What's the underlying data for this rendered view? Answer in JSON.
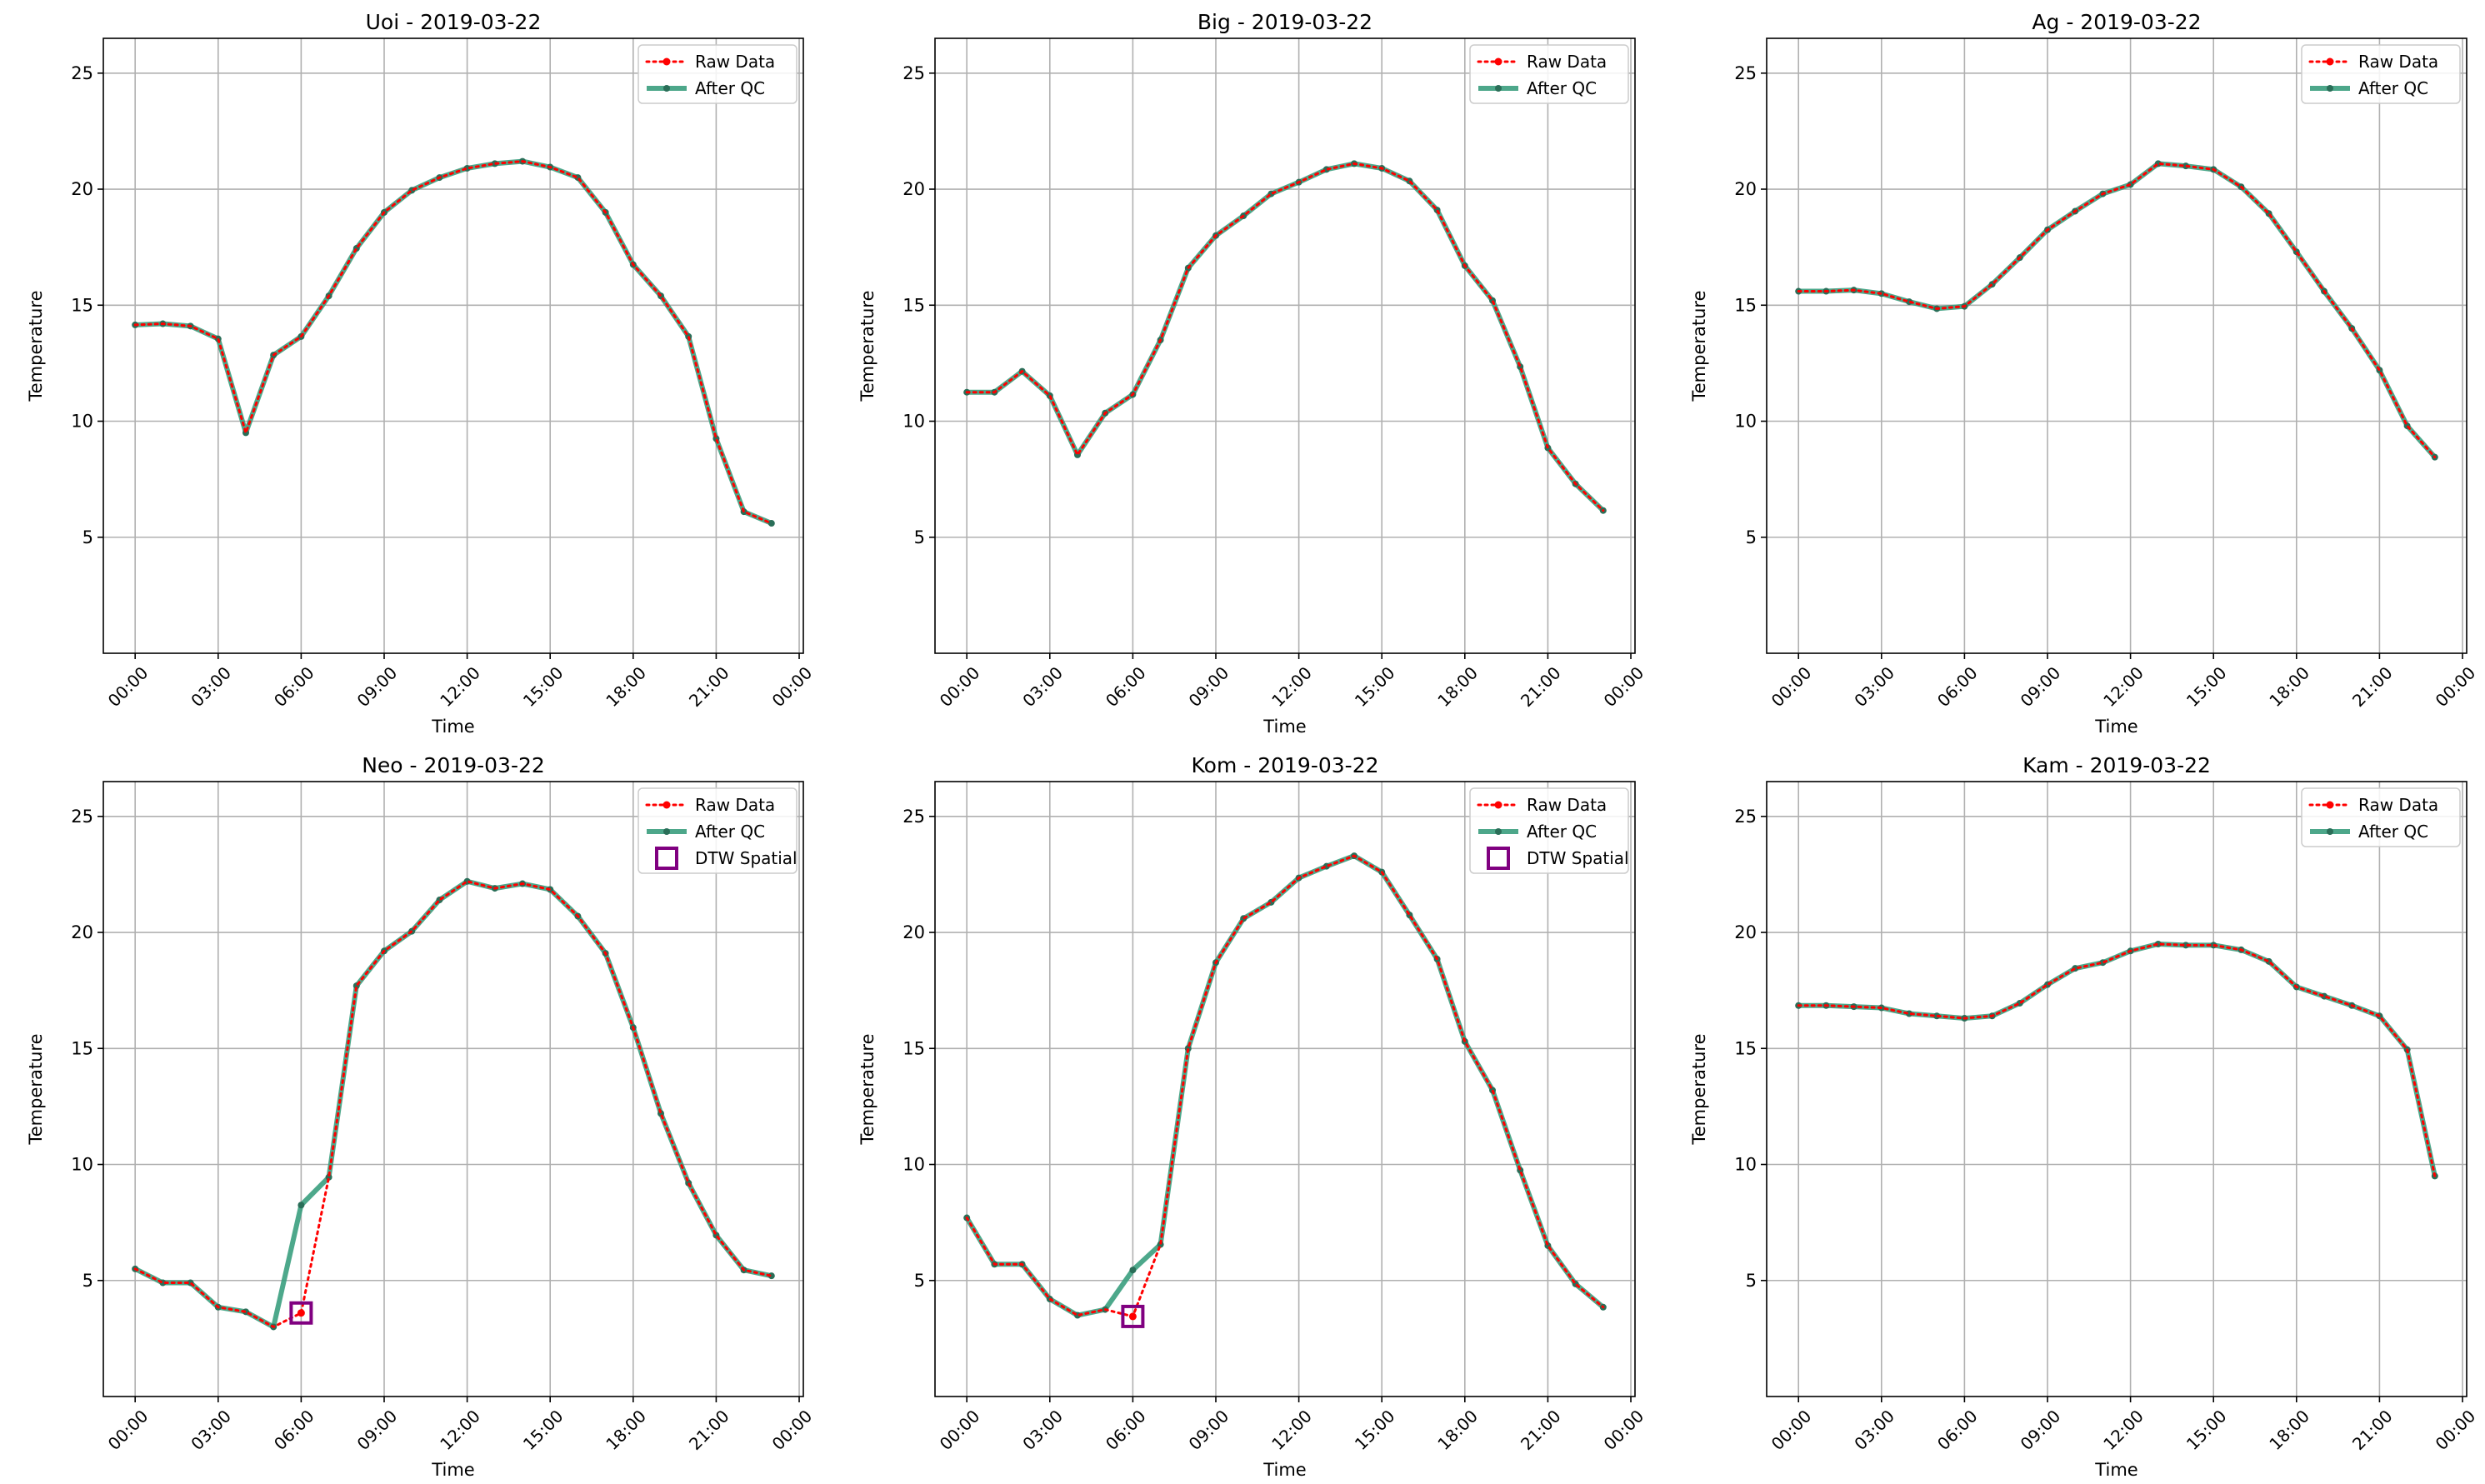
{
  "figure": {
    "panel_layout": {
      "rows": 2,
      "cols": 3
    }
  },
  "colors": {
    "raw": "#ff0000",
    "after_qc": "#3a9e7e",
    "after_qc_marker": "#2a6e58",
    "dtw": "#800080",
    "grid": "#b0b0b0",
    "axis": "#000000"
  },
  "chart_data": [
    {
      "type": "line",
      "title": "Uoi - 2019-03-22",
      "xlabel": "Time",
      "ylabel": "Temperature",
      "xlim": [
        -1.15,
        24.15
      ],
      "ylim": [
        0,
        26.5
      ],
      "x_ticks": [
        0,
        3,
        6,
        9,
        12,
        15,
        18,
        21,
        24
      ],
      "x_tick_labels": [
        "00:00",
        "03:00",
        "06:00",
        "09:00",
        "12:00",
        "15:00",
        "18:00",
        "21:00",
        "00:00"
      ],
      "y_ticks": [
        5,
        10,
        15,
        20,
        25
      ],
      "y_tick_labels": [
        "5",
        "10",
        "15",
        "20",
        "25"
      ],
      "grid": true,
      "legend_position": "top-right",
      "x": [
        0,
        1,
        2,
        3,
        4,
        5,
        6,
        7,
        8,
        9,
        10,
        11,
        12,
        13,
        14,
        15,
        16,
        17,
        18,
        19,
        20,
        21,
        22,
        23
      ],
      "series": [
        {
          "name": "Raw Data",
          "style": "dotted",
          "values": [
            14.15,
            14.2,
            14.1,
            13.55,
            9.5,
            12.85,
            13.65,
            15.4,
            17.45,
            19.0,
            19.95,
            20.5,
            20.9,
            21.1,
            21.2,
            20.95,
            20.5,
            19.0,
            16.75,
            15.4,
            13.65,
            9.25,
            6.1,
            5.6
          ]
        },
        {
          "name": "After QC",
          "style": "solid",
          "values": [
            14.15,
            14.2,
            14.1,
            13.55,
            9.5,
            12.85,
            13.65,
            15.4,
            17.45,
            19.0,
            19.95,
            20.5,
            20.9,
            21.1,
            21.2,
            20.95,
            20.5,
            19.0,
            16.75,
            15.4,
            13.65,
            9.25,
            6.1,
            5.6
          ]
        }
      ],
      "dtw_points": []
    },
    {
      "type": "line",
      "title": "Big - 2019-03-22",
      "xlabel": "Time",
      "ylabel": "Temperature",
      "xlim": [
        -1.15,
        24.15
      ],
      "ylim": [
        0,
        26.5
      ],
      "x_ticks": [
        0,
        3,
        6,
        9,
        12,
        15,
        18,
        21,
        24
      ],
      "x_tick_labels": [
        "00:00",
        "03:00",
        "06:00",
        "09:00",
        "12:00",
        "15:00",
        "18:00",
        "21:00",
        "00:00"
      ],
      "y_ticks": [
        5,
        10,
        15,
        20,
        25
      ],
      "y_tick_labels": [
        "5",
        "10",
        "15",
        "20",
        "25"
      ],
      "grid": true,
      "legend_position": "top-right",
      "x": [
        0,
        1,
        2,
        3,
        4,
        5,
        6,
        7,
        8,
        9,
        10,
        11,
        12,
        13,
        14,
        15,
        16,
        17,
        18,
        19,
        20,
        21,
        22,
        23
      ],
      "series": [
        {
          "name": "Raw Data",
          "style": "dotted",
          "values": [
            11.25,
            11.25,
            12.15,
            11.1,
            8.55,
            10.35,
            11.15,
            13.5,
            16.6,
            18.0,
            18.85,
            19.8,
            20.3,
            20.85,
            21.1,
            20.9,
            20.35,
            19.1,
            16.7,
            15.2,
            12.35,
            8.85,
            7.3,
            6.15
          ]
        },
        {
          "name": "After QC",
          "style": "solid",
          "values": [
            11.25,
            11.25,
            12.15,
            11.1,
            8.55,
            10.35,
            11.15,
            13.5,
            16.6,
            18.0,
            18.85,
            19.8,
            20.3,
            20.85,
            21.1,
            20.9,
            20.35,
            19.1,
            16.7,
            15.2,
            12.35,
            8.85,
            7.3,
            6.15
          ]
        }
      ],
      "dtw_points": []
    },
    {
      "type": "line",
      "title": "Ag - 2019-03-22",
      "xlabel": "Time",
      "ylabel": "Temperature",
      "xlim": [
        -1.15,
        24.15
      ],
      "ylim": [
        0,
        26.5
      ],
      "x_ticks": [
        0,
        3,
        6,
        9,
        12,
        15,
        18,
        21,
        24
      ],
      "x_tick_labels": [
        "00:00",
        "03:00",
        "06:00",
        "09:00",
        "12:00",
        "15:00",
        "18:00",
        "21:00",
        "00:00"
      ],
      "y_ticks": [
        5,
        10,
        15,
        20,
        25
      ],
      "y_tick_labels": [
        "5",
        "10",
        "15",
        "20",
        "25"
      ],
      "grid": true,
      "legend_position": "top-right",
      "x": [
        0,
        1,
        2,
        3,
        4,
        5,
        6,
        7,
        8,
        9,
        10,
        11,
        12,
        13,
        14,
        15,
        16,
        17,
        18,
        19,
        20,
        21,
        22,
        23
      ],
      "series": [
        {
          "name": "Raw Data",
          "style": "dotted",
          "values": [
            15.6,
            15.6,
            15.65,
            15.5,
            15.15,
            14.85,
            14.95,
            15.9,
            17.05,
            18.25,
            19.05,
            19.8,
            20.2,
            21.1,
            21.0,
            20.85,
            20.1,
            18.95,
            17.3,
            15.6,
            14.0,
            12.2,
            9.8,
            8.45
          ]
        },
        {
          "name": "After QC",
          "style": "solid",
          "values": [
            15.6,
            15.6,
            15.65,
            15.5,
            15.15,
            14.85,
            14.95,
            15.9,
            17.05,
            18.25,
            19.05,
            19.8,
            20.2,
            21.1,
            21.0,
            20.85,
            20.1,
            18.95,
            17.3,
            15.6,
            14.0,
            12.2,
            9.8,
            8.45
          ]
        }
      ],
      "dtw_points": []
    },
    {
      "type": "line",
      "title": "Neo - 2019-03-22",
      "xlabel": "Time",
      "ylabel": "Temperature",
      "xlim": [
        -1.15,
        24.15
      ],
      "ylim": [
        0,
        26.5
      ],
      "x_ticks": [
        0,
        3,
        6,
        9,
        12,
        15,
        18,
        21,
        24
      ],
      "x_tick_labels": [
        "00:00",
        "03:00",
        "06:00",
        "09:00",
        "12:00",
        "15:00",
        "18:00",
        "21:00",
        "00:00"
      ],
      "y_ticks": [
        5,
        10,
        15,
        20,
        25
      ],
      "y_tick_labels": [
        "5",
        "10",
        "15",
        "20",
        "25"
      ],
      "grid": true,
      "legend_position": "top-right",
      "x": [
        0,
        1,
        2,
        3,
        4,
        5,
        6,
        7,
        8,
        9,
        10,
        11,
        12,
        13,
        14,
        15,
        16,
        17,
        18,
        19,
        20,
        21,
        22,
        23
      ],
      "series": [
        {
          "name": "Raw Data",
          "style": "dotted",
          "values": [
            5.5,
            4.9,
            4.9,
            3.85,
            3.65,
            3.0,
            3.6,
            9.45,
            17.7,
            19.2,
            20.05,
            21.4,
            22.2,
            21.9,
            22.1,
            21.85,
            20.7,
            19.1,
            15.9,
            12.2,
            9.2,
            6.95,
            5.45,
            5.2
          ]
        },
        {
          "name": "After QC",
          "style": "solid",
          "values": [
            5.5,
            4.9,
            4.9,
            3.85,
            3.65,
            3.0,
            8.25,
            9.45,
            17.7,
            19.2,
            20.05,
            21.4,
            22.2,
            21.9,
            22.1,
            21.85,
            20.7,
            19.1,
            15.9,
            12.2,
            9.2,
            6.95,
            5.45,
            5.2
          ]
        }
      ],
      "dtw_label": "DTW Spatial",
      "dtw_points": [
        {
          "x": 6,
          "y": 3.6
        }
      ]
    },
    {
      "type": "line",
      "title": "Kom - 2019-03-22",
      "xlabel": "Time",
      "ylabel": "Temperature",
      "xlim": [
        -1.15,
        24.15
      ],
      "ylim": [
        0,
        26.5
      ],
      "x_ticks": [
        0,
        3,
        6,
        9,
        12,
        15,
        18,
        21,
        24
      ],
      "x_tick_labels": [
        "00:00",
        "03:00",
        "06:00",
        "09:00",
        "12:00",
        "15:00",
        "18:00",
        "21:00",
        "00:00"
      ],
      "y_ticks": [
        5,
        10,
        15,
        20,
        25
      ],
      "y_tick_labels": [
        "5",
        "10",
        "15",
        "20",
        "25"
      ],
      "grid": true,
      "legend_position": "top-right",
      "x": [
        0,
        1,
        2,
        3,
        4,
        5,
        6,
        7,
        8,
        9,
        10,
        11,
        12,
        13,
        14,
        15,
        16,
        17,
        18,
        19,
        20,
        21,
        22,
        23
      ],
      "series": [
        {
          "name": "Raw Data",
          "style": "dotted",
          "values": [
            7.7,
            5.7,
            5.7,
            4.2,
            3.5,
            3.75,
            3.45,
            6.55,
            15.0,
            18.7,
            20.6,
            21.3,
            22.35,
            22.85,
            23.3,
            22.6,
            20.75,
            18.85,
            15.3,
            13.2,
            9.75,
            6.5,
            4.85,
            3.85
          ]
        },
        {
          "name": "After QC",
          "style": "solid",
          "values": [
            7.7,
            5.7,
            5.7,
            4.2,
            3.5,
            3.75,
            5.45,
            6.55,
            15.0,
            18.7,
            20.6,
            21.3,
            22.35,
            22.85,
            23.3,
            22.6,
            20.75,
            18.85,
            15.3,
            13.2,
            9.75,
            6.5,
            4.85,
            3.85
          ]
        }
      ],
      "dtw_label": "DTW Spatial",
      "dtw_points": [
        {
          "x": 6,
          "y": 3.45
        }
      ]
    },
    {
      "type": "line",
      "title": "Kam - 2019-03-22",
      "xlabel": "Time",
      "ylabel": "Temperature",
      "xlim": [
        -1.15,
        24.15
      ],
      "ylim": [
        0,
        26.5
      ],
      "x_ticks": [
        0,
        3,
        6,
        9,
        12,
        15,
        18,
        21,
        24
      ],
      "x_tick_labels": [
        "00:00",
        "03:00",
        "06:00",
        "09:00",
        "12:00",
        "15:00",
        "18:00",
        "21:00",
        "00:00"
      ],
      "y_ticks": [
        5,
        10,
        15,
        20,
        25
      ],
      "y_tick_labels": [
        "5",
        "10",
        "15",
        "20",
        "25"
      ],
      "grid": true,
      "legend_position": "top-right",
      "x": [
        0,
        1,
        2,
        3,
        4,
        5,
        6,
        7,
        8,
        9,
        10,
        11,
        12,
        13,
        14,
        15,
        16,
        17,
        18,
        19,
        20,
        21,
        22,
        23
      ],
      "series": [
        {
          "name": "Raw Data",
          "style": "dotted",
          "values": [
            16.85,
            16.85,
            16.8,
            16.75,
            16.5,
            16.4,
            16.3,
            16.4,
            16.95,
            17.75,
            18.45,
            18.7,
            19.2,
            19.5,
            19.45,
            19.45,
            19.25,
            18.75,
            17.65,
            17.25,
            16.85,
            16.4,
            14.95,
            9.5
          ]
        },
        {
          "name": "After QC",
          "style": "solid",
          "values": [
            16.85,
            16.85,
            16.8,
            16.75,
            16.5,
            16.4,
            16.3,
            16.4,
            16.95,
            17.75,
            18.45,
            18.7,
            19.2,
            19.5,
            19.45,
            19.45,
            19.25,
            18.75,
            17.65,
            17.25,
            16.85,
            16.4,
            14.95,
            9.5
          ]
        }
      ],
      "dtw_points": []
    }
  ]
}
